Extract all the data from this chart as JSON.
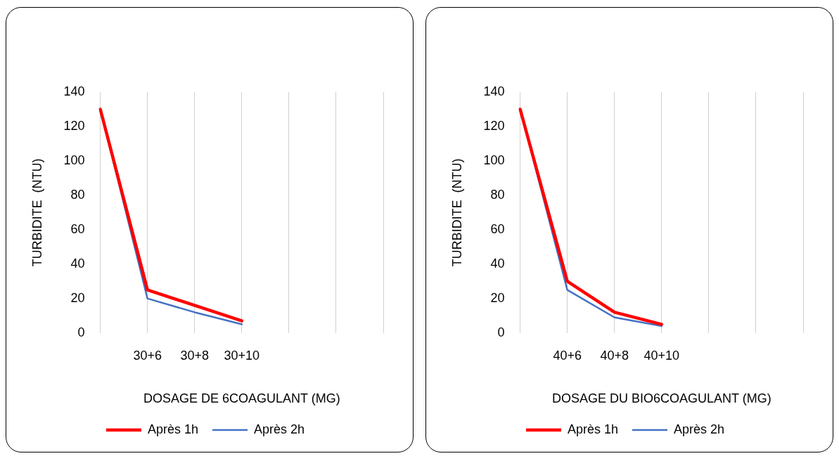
{
  "chart_data": [
    {
      "type": "line",
      "xlabel": "DOSAGE DE 6COAGULANT (MG)",
      "ylabel": "TURBIDITE  (NTU)",
      "categories": [
        null,
        "30+6",
        "30+8",
        "30+10",
        null,
        null,
        null
      ],
      "ylim": [
        0,
        140
      ],
      "yticks": [
        0,
        20,
        40,
        60,
        80,
        100,
        120,
        140
      ],
      "grid": "x",
      "legend": "bottom",
      "marker": "none",
      "series": [
        {
          "name": "Après 1h",
          "color": "#ff0000",
          "values": [
            130,
            25,
            16,
            7,
            null,
            null,
            null
          ]
        },
        {
          "name": "Après 2h",
          "color": "#4472c4",
          "values": [
            130,
            20,
            12,
            5,
            null,
            null,
            null
          ]
        }
      ]
    },
    {
      "type": "line",
      "xlabel": "DOSAGE DU BIO6COAGULANT (MG)",
      "ylabel": "TURBIDITE  (NTU)",
      "categories": [
        null,
        "40+6",
        "40+8",
        "40+10",
        null,
        null,
        null
      ],
      "ylim": [
        0,
        140
      ],
      "yticks": [
        0,
        20,
        40,
        60,
        80,
        100,
        120,
        140
      ],
      "grid": "x",
      "legend": "bottom",
      "marker": "none",
      "series": [
        {
          "name": "Après 1h",
          "color": "#ff0000",
          "values": [
            130,
            30,
            12,
            5,
            null,
            null,
            null
          ]
        },
        {
          "name": "Après 2h",
          "color": "#4472c4",
          "values": [
            130,
            25,
            9,
            4,
            null,
            null,
            null
          ]
        }
      ]
    }
  ]
}
